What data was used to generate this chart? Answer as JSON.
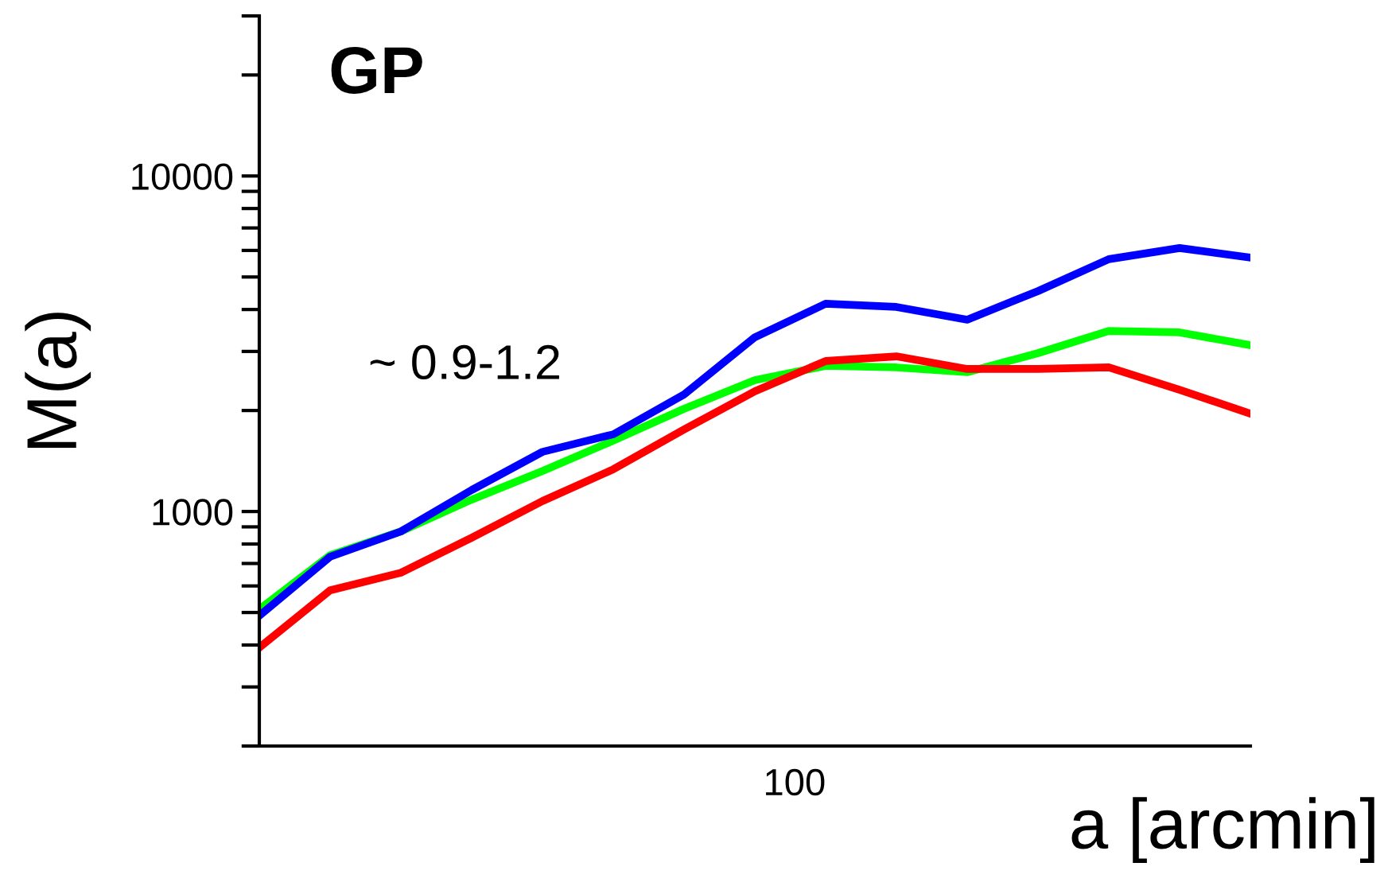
{
  "chart_data": {
    "type": "line",
    "title": "GP",
    "xlabel": "a [arcmin]",
    "ylabel": "M(a)",
    "annotations": [
      "~ 0.9-1.2",
      "100"
    ],
    "log": "y",
    "grid": false,
    "legend": false,
    "marker": "none",
    "line_style": "solid",
    "categories": [
      null,
      null,
      null,
      null,
      null,
      null,
      null,
      null,
      null,
      null,
      null,
      null,
      null,
      null,
      null
    ],
    "series": [
      {
        "color": "#00ff00",
        "values": [
          511,
          741,
          872,
          1085,
          1321,
          1626,
          2023,
          2462,
          2717,
          2688,
          2601,
          2965,
          3454,
          3418,
          3131
        ]
      },
      {
        "color": "#ff0000",
        "values": [
          393,
          582,
          657,
          835,
          1074,
          1336,
          1755,
          2281,
          2808,
          2900,
          2659,
          2659,
          2688,
          2306,
          1958
        ]
      },
      {
        "color": "#0000ff",
        "values": [
          489,
          733,
          872,
          1159,
          1506,
          1698,
          2232,
          3306,
          4160,
          4070,
          3730,
          4540,
          5650,
          6100,
          5710
        ]
      }
    ],
    "ylim": [
      200,
      30000
    ],
    "yticks": [
      {
        "value": 200,
        "label": null
      },
      {
        "value": 300,
        "label": null
      },
      {
        "value": 400,
        "label": null
      },
      {
        "value": 500,
        "label": null
      },
      {
        "value": 600,
        "label": null
      },
      {
        "value": 700,
        "label": null
      },
      {
        "value": 800,
        "label": null
      },
      {
        "value": 900,
        "label": null
      },
      1000,
      {
        "value": 2000,
        "label": null
      },
      {
        "value": 3000,
        "label": null
      },
      {
        "value": 4000,
        "label": null
      },
      {
        "value": 5000,
        "label": null
      },
      {
        "value": 6000,
        "label": null
      },
      {
        "value": 7000,
        "label": null
      },
      {
        "value": 8000,
        "label": null
      },
      {
        "value": 9000,
        "label": null
      },
      10000,
      {
        "value": 20000,
        "label": null
      },
      {
        "value": 30000,
        "label": null
      }
    ]
  }
}
